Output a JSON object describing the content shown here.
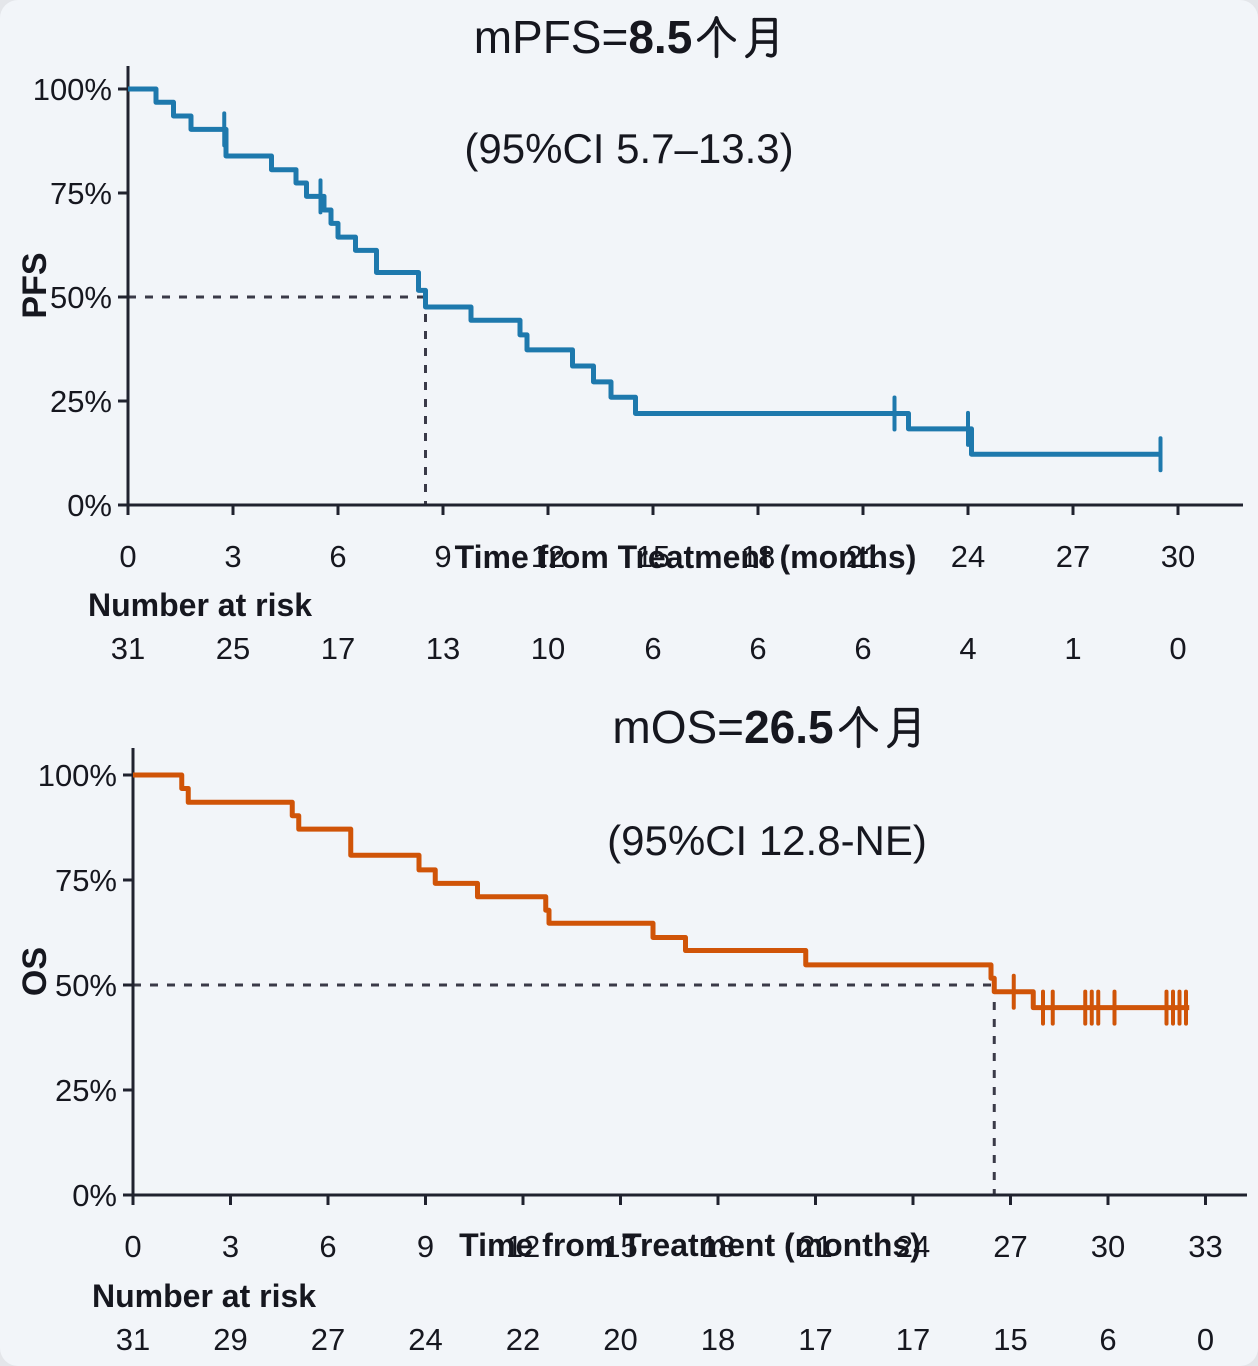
{
  "figure": {
    "background_color": "#f2f5f9",
    "ink_color": "#16171f",
    "axis_color": "#20222f",
    "median_dash_color": "#3a3a48"
  },
  "chart_data": [
    {
      "type": "line",
      "name": "PFS Kaplan-Meier curve",
      "title_prefix": "mPFS=",
      "title_value": "8.5",
      "title_unit": "个月",
      "subtitle": "(95%CI 5.7–13.3)",
      "ylabel": "PFS",
      "xlabel": "Time from Treatment (months)",
      "risk_header": "Number at risk",
      "line_color": "#1e79ad",
      "xlim": [
        0,
        31.9
      ],
      "ylim": [
        0,
        100
      ],
      "x_ticks": [
        0,
        3,
        6,
        9,
        12,
        15,
        18,
        21,
        24,
        27,
        30
      ],
      "y_ticks": [
        100,
        75,
        50,
        25,
        0
      ],
      "y_tick_suffix": "%",
      "median_months": 8.5,
      "median_pct": 50,
      "steps_time_pct": [
        [
          0,
          100
        ],
        [
          0.8,
          96.8
        ],
        [
          1.3,
          93.5
        ],
        [
          1.8,
          90.3
        ],
        [
          2.8,
          83.9
        ],
        [
          4.1,
          80.6
        ],
        [
          4.8,
          77.4
        ],
        [
          5.1,
          74.2
        ],
        [
          5.6,
          70.9
        ],
        [
          5.8,
          67.7
        ],
        [
          6.0,
          64.4
        ],
        [
          6.5,
          61.2
        ],
        [
          7.1,
          55.9
        ],
        [
          8.3,
          51.6
        ],
        [
          8.5,
          47.6
        ],
        [
          9.8,
          44.4
        ],
        [
          11.2,
          40.9
        ],
        [
          11.4,
          37.3
        ],
        [
          12.7,
          33.4
        ],
        [
          13.3,
          29.6
        ],
        [
          13.8,
          25.9
        ],
        [
          14.5,
          22.0
        ],
        [
          22.3,
          18.3
        ],
        [
          24.1,
          12.2
        ]
      ],
      "curve_end_month": 29.5,
      "censors_time_pct": [
        [
          2.75,
          90.3
        ],
        [
          5.5,
          74.2
        ],
        [
          21.9,
          22.0
        ],
        [
          24.0,
          18.3
        ],
        [
          29.5,
          12.2
        ]
      ],
      "risk_times": [
        0,
        3,
        6,
        9,
        12,
        15,
        18,
        21,
        24,
        27,
        30
      ],
      "number_at_risk": [
        31,
        25,
        17,
        13,
        10,
        6,
        6,
        6,
        4,
        1,
        0
      ]
    },
    {
      "type": "line",
      "name": "OS Kaplan-Meier curve",
      "title_prefix": "mOS=",
      "title_value": "26.5",
      "title_unit": "个月",
      "subtitle": "(95%CI 12.8-NE)",
      "ylabel": "OS",
      "xlabel": "Time from Treatment (months)",
      "risk_header": "Number at risk",
      "line_color": "#d05408",
      "xlim": [
        0,
        34.3
      ],
      "ylim": [
        0,
        100
      ],
      "x_ticks": [
        0,
        3,
        6,
        9,
        12,
        15,
        18,
        21,
        24,
        27,
        30,
        33
      ],
      "y_ticks": [
        100,
        75,
        50,
        25,
        0
      ],
      "y_tick_suffix": "%",
      "median_months": 26.5,
      "median_pct": 50,
      "steps_time_pct": [
        [
          0,
          100
        ],
        [
          1.5,
          96.8
        ],
        [
          1.7,
          93.5
        ],
        [
          4.9,
          90.3
        ],
        [
          5.1,
          87.1
        ],
        [
          6.7,
          80.9
        ],
        [
          8.8,
          77.4
        ],
        [
          9.3,
          74.2
        ],
        [
          10.6,
          71.0
        ],
        [
          12.7,
          67.8
        ],
        [
          12.8,
          64.7
        ],
        [
          16.0,
          61.3
        ],
        [
          17.0,
          58.2
        ],
        [
          20.7,
          54.8
        ],
        [
          26.4,
          51.6
        ],
        [
          26.5,
          48.4
        ],
        [
          27.7,
          44.6
        ]
      ],
      "curve_end_month": 32.5,
      "censors_time_pct": [
        [
          27.1,
          48.4
        ],
        [
          28.0,
          44.6
        ],
        [
          28.3,
          44.6
        ],
        [
          29.3,
          44.6
        ],
        [
          29.5,
          44.6
        ],
        [
          29.7,
          44.6
        ],
        [
          30.2,
          44.6
        ],
        [
          31.8,
          44.6
        ],
        [
          32.0,
          44.6
        ],
        [
          32.2,
          44.6
        ],
        [
          32.4,
          44.6
        ]
      ],
      "risk_times": [
        0,
        3,
        6,
        9,
        12,
        15,
        18,
        21,
        24,
        27,
        30,
        33
      ],
      "number_at_risk": [
        31,
        29,
        27,
        24,
        22,
        20,
        18,
        17,
        17,
        15,
        6,
        0
      ]
    }
  ]
}
